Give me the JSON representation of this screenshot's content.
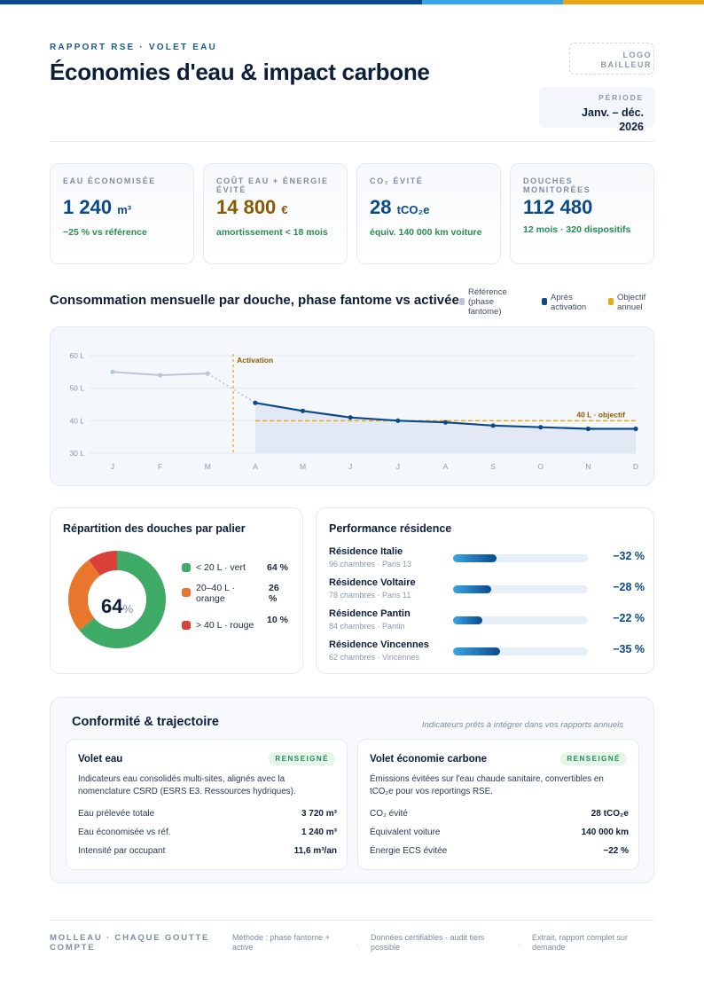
{
  "header": {
    "kicker": "RAPPORT RSE · VOLET EAU",
    "title": "Économies d'eau & impact carbone",
    "logo_line1": "LOGO",
    "logo_line2": "BAILLEUR",
    "period_label": "PÉRIODE",
    "period_value_line1": "Janv. – déc.",
    "period_value_line2": "2026"
  },
  "kpis": [
    {
      "label": "EAU ÉCONOMISÉE",
      "value": "1 240",
      "unit": "m³",
      "sub": "−25 % vs référence",
      "color": "#0b4a8a"
    },
    {
      "label": "COÛT EAU + ÉNERGIE ÉVITÉ",
      "value": "14 800",
      "unit": "€",
      "sub": "amortissement < 18 mois",
      "color": "#8a5a00"
    },
    {
      "label": "CO₂ ÉVITÉ",
      "value": "28",
      "unit": "tCO₂e",
      "sub": "équiv. 140 000 km voiture",
      "color": "#0b4a8a"
    },
    {
      "label": "DOUCHES MONITORÉES",
      "value": "112 480",
      "unit": "",
      "sub": "12 mois · 320 dispositifs",
      "color": "#0b4a8a"
    }
  ],
  "consumption": {
    "title": "Consommation mensuelle par douche, phase fantome vs activée",
    "legend": [
      {
        "label": "Référence (phase fantome)",
        "color": "#b9c7d6"
      },
      {
        "label": "Après activation",
        "color": "#0b4a8a"
      },
      {
        "label": "Objectif annuel",
        "color": "#e6a817"
      }
    ],
    "activation_label": "Activation",
    "target_label": "40 L · objectif"
  },
  "chart_data": {
    "type": "line",
    "categories": [
      "J",
      "F",
      "M",
      "A",
      "M",
      "J",
      "J",
      "A",
      "S",
      "O",
      "N",
      "D"
    ],
    "series": [
      {
        "name": "Référence (phase fantome)",
        "values": [
          55,
          54,
          54.5,
          null,
          null,
          null,
          null,
          null,
          null,
          null,
          null,
          null
        ]
      },
      {
        "name": "Après activation",
        "values": [
          null,
          null,
          null,
          45.5,
          43,
          41,
          40,
          39.5,
          38.5,
          38,
          37.5,
          37.5
        ]
      }
    ],
    "target": 40,
    "yticks": [
      "60 L",
      "50 L",
      "40 L",
      "30 L"
    ],
    "ylim": [
      30,
      60
    ],
    "grid": true
  },
  "distribution": {
    "title": "Répartition des douches par palier",
    "center_value": "64",
    "center_unit": "%",
    "segments": [
      {
        "label": "< 20 L · vert",
        "pct_label": "64 %",
        "value": 64,
        "color": "#3dab65"
      },
      {
        "label": "20–40 L · orange",
        "pct_label": "26 %",
        "value": 26,
        "color": "#e8762c"
      },
      {
        "label": "> 40 L · rouge",
        "pct_label": "10 %",
        "value": 10,
        "color": "#d9403a"
      }
    ]
  },
  "performance": {
    "title": "Performance résidence",
    "items": [
      {
        "name": "Résidence Italie",
        "detail": "96 chambres · Paris 13",
        "pct": "−32 %",
        "value": 32
      },
      {
        "name": "Résidence Voltaire",
        "detail": "78 chambres · Paris 11",
        "pct": "−28 %",
        "value": 28
      },
      {
        "name": "Résidence Pantin",
        "detail": "84 chambres · Pantin",
        "pct": "−22 %",
        "value": 22
      },
      {
        "name": "Résidence Vincennes",
        "detail": "62 chambres · Vincennes",
        "pct": "−35 %",
        "value": 35
      }
    ]
  },
  "compliance": {
    "title": "Conformité & trajectoire",
    "note": "Indicateurs prêts à intégrer dans vos rapports annuels",
    "water": {
      "title": "Volet eau",
      "badge": "RENSEIGNÉ",
      "desc": "Indicateurs eau consolidés multi-sites, alignés avec la nomenclature CSRD (ESRS E3. Ressources hydriques).",
      "rows": [
        {
          "label": "Eau prélevée totale",
          "value": "3 720 m³"
        },
        {
          "label": "Eau économisée vs réf.",
          "value": "1 240 m³"
        },
        {
          "label": "Intensité par occupant",
          "value": "11,6 m³/an"
        }
      ]
    },
    "carbon": {
      "title": "Volet économie carbone",
      "badge": "RENSEIGNÉ",
      "desc": "Émissions évitées sur l'eau chaude sanitaire, convertibles en tCO₂e pour vos reportings RSE.",
      "rows": [
        {
          "label": "CO₂ évité",
          "value": "28 tCO₂e"
        },
        {
          "label": "Équivalent voiture",
          "value": "140 000 km"
        },
        {
          "label": "Énergie ECS évitée",
          "value": "−22 %"
        }
      ]
    }
  },
  "footer": {
    "brand": "MOLLEAU · CHAQUE GOUTTE COMPTE",
    "items": [
      "Méthode : phase fantome + active",
      "Données certifiables · audit tiers possible",
      "Extrait, rapport complet sur demande"
    ],
    "separator": "·"
  }
}
